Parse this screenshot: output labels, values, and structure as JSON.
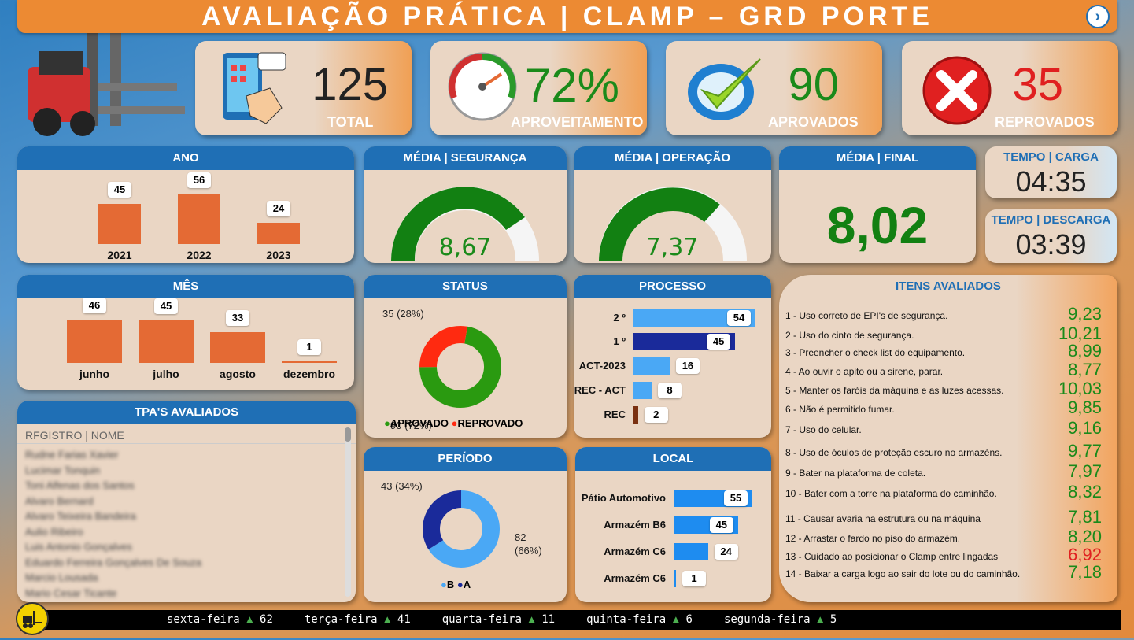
{
  "title": "AVALIAÇÃO PRÁTICA | CLAMP – GRD PORTE",
  "kpis": {
    "total": {
      "value": "125",
      "label": "TOTAL"
    },
    "aproveitamento": {
      "value": "72%",
      "label": "APROVEITAMENTO"
    },
    "aprovados": {
      "value": "90",
      "label": "APROVADOS"
    },
    "reprovados": {
      "value": "35",
      "label": "REPROVADOS"
    }
  },
  "ano": {
    "title": "ANO",
    "categories": [
      "2021",
      "2022",
      "2023"
    ],
    "values": [
      45,
      56,
      24
    ]
  },
  "mes": {
    "title": "MÊS",
    "categories": [
      "junho",
      "julho",
      "agosto",
      "dezembro"
    ],
    "values": [
      46,
      45,
      33,
      1
    ]
  },
  "seguranca": {
    "title": "MÉDIA | SEGURANÇA",
    "value": "8,67"
  },
  "operacao": {
    "title": "MÉDIA | OPERAÇÃO",
    "value": "7,37"
  },
  "final": {
    "title": "MÉDIA | FINAL",
    "value": "8,02"
  },
  "tempo_carga": {
    "title": "TEMPO | CARGA",
    "value": "04:35"
  },
  "tempo_descarga": {
    "title": "TEMPO | DESCARGA",
    "value": "03:39"
  },
  "status": {
    "title": "STATUS",
    "rep_label": "35 (28%)",
    "apr_label": "90 (72%)",
    "legend_a": "APROVADO",
    "legend_r": "REPROVADO"
  },
  "periodo": {
    "title": "PERÍODO",
    "a_label": "43 (34%)",
    "b_label1": "82",
    "b_label2": "(66%)",
    "legend_b": "B",
    "legend_a": "A"
  },
  "processo": {
    "title": "PROCESSO",
    "categories": [
      "2 º",
      "1 º",
      "ACT-2023",
      "REC - ACT",
      "REC"
    ],
    "values": [
      54,
      45,
      16,
      8,
      2
    ]
  },
  "local": {
    "title": "LOCAL",
    "categories": [
      "Pátio Automotivo",
      "Armazém B6",
      "Armazém C6",
      "Armazém C6"
    ],
    "values": [
      55,
      45,
      24,
      1
    ]
  },
  "itens": {
    "title": "ITENS AVALIADOS",
    "list": [
      {
        "text": "1 - Uso correto de EPI's de segurança.",
        "value": "9,23",
        "color": "#1a8a1a"
      },
      {
        "text": "2 - Uso do cinto de segurança.",
        "value": "10,21",
        "color": "#1a8a1a"
      },
      {
        "text": "3 - Preencher o check list do equipamento.",
        "value": "8,99",
        "color": "#1a8a1a"
      },
      {
        "text": "4 - Ao ouvir o apito ou a sirene, parar.",
        "value": "8,77",
        "color": "#1a8a1a"
      },
      {
        "text": "5 - Manter os faróis da máquina e as luzes acessas.",
        "value": "10,03",
        "color": "#1a8a1a"
      },
      {
        "text": "6 - Não é permitido fumar.",
        "value": "9,85",
        "color": "#1a8a1a"
      },
      {
        "text": "7 - Uso do celular.",
        "value": "9,16",
        "color": "#1a8a1a"
      },
      {
        "text": "8 - Uso de óculos de proteção escuro no armazéns.",
        "value": "9,77",
        "color": "#1a8a1a"
      },
      {
        "text": "9 - Bater na plataforma de coleta.",
        "value": "7,97",
        "color": "#1a8a1a"
      },
      {
        "text": "10 - Bater com a torre na plataforma do caminhão.",
        "value": "8,32",
        "color": "#1a8a1a"
      },
      {
        "text": "11 - Causar avaria na estrutura ou na máquina",
        "value": "7,81",
        "color": "#1a8a1a"
      },
      {
        "text": "12 - Arrastar o fardo no piso do armazém.",
        "value": "8,20",
        "color": "#1a8a1a"
      },
      {
        "text": "13 - Cuidado ao posicionar o Clamp entre lingadas",
        "value": "6,92",
        "color": "#e02020"
      },
      {
        "text": "14 - Baixar a carga logo ao sair do lote ou do caminhão.",
        "value": "7,18",
        "color": "#1a8a1a"
      }
    ]
  },
  "tpa": {
    "title": "TPA'S AVALIADOS",
    "column": "RFGISTRO | NOME",
    "rows": [
      "Rudne Farias Xavier",
      "Lucimar Tonquin",
      "Toni Alfenas dos Santos",
      "Alvaro Bernard",
      "Alvaro Teixeira Bandeira",
      "Aulio Ribeiro",
      "Luis Antonio Gonçalves",
      "Eduardo Ferreira Gonçalves De Souza",
      "Marcio Lousada",
      "Mario Cesar Ticante"
    ]
  },
  "ticker": [
    {
      "day": "sexta-feira",
      "value": "62"
    },
    {
      "day": "terça-feira",
      "value": "41"
    },
    {
      "day": "quarta-feira",
      "value": "11"
    },
    {
      "day": "quinta-feira",
      "value": "6"
    },
    {
      "day": "segunda-feira",
      "value": "5"
    }
  ],
  "chart_data": [
    {
      "type": "bar",
      "title": "ANO",
      "categories": [
        "2021",
        "2022",
        "2023"
      ],
      "values": [
        45,
        56,
        24
      ]
    },
    {
      "type": "bar",
      "title": "MÊS",
      "categories": [
        "junho",
        "julho",
        "agosto",
        "dezembro"
      ],
      "values": [
        46,
        45,
        33,
        1
      ]
    },
    {
      "type": "pie",
      "title": "STATUS",
      "categories": [
        "APROVADO",
        "REPROVADO"
      ],
      "values": [
        90,
        35
      ]
    },
    {
      "type": "pie",
      "title": "PERÍODO",
      "categories": [
        "B",
        "A"
      ],
      "values": [
        82,
        43
      ]
    },
    {
      "type": "bar",
      "title": "PROCESSO",
      "categories": [
        "2 º",
        "1 º",
        "ACT-2023",
        "REC - ACT",
        "REC"
      ],
      "values": [
        54,
        45,
        16,
        8,
        2
      ]
    },
    {
      "type": "bar",
      "title": "LOCAL",
      "categories": [
        "Pátio Automotivo",
        "Armazém B6",
        "Armazém C6",
        "Armazém C6"
      ],
      "values": [
        55,
        45,
        24,
        1
      ]
    }
  ]
}
